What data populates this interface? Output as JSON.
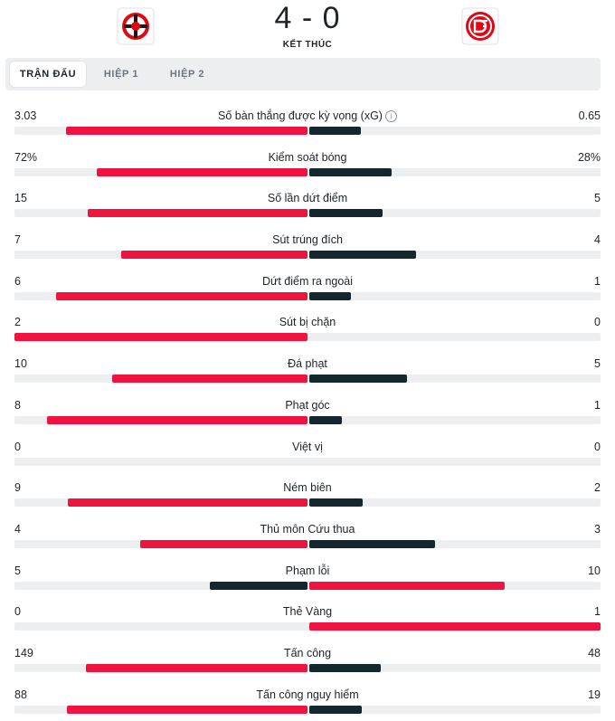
{
  "match": {
    "home_logo": "bayer-leverkusen-logo",
    "away_logo": "fortuna-dusseldorf-logo",
    "score": "4 - 0",
    "status": "KẾT THÚC"
  },
  "tabs": [
    {
      "label": "TRẬN ĐẤU",
      "active": true
    },
    {
      "label": "HIỆP 1",
      "active": false
    },
    {
      "label": "HIỆP 2",
      "active": false
    }
  ],
  "colors": {
    "home": "#f0123f",
    "away": "#14272e",
    "track": "#eceef0"
  },
  "stats": [
    {
      "label": "Số bàn thắng được kỳ vọng (xG)",
      "home": "3.03",
      "away": "0.65",
      "home_share": 0.823,
      "away_share": 0.177,
      "info": true
    },
    {
      "label": "Kiểm soát bóng",
      "home": "72%",
      "away": "28%",
      "home_share": 0.72,
      "away_share": 0.28
    },
    {
      "label": "Số lần dứt điểm",
      "home": "15",
      "away": "5",
      "home_share": 0.75,
      "away_share": 0.25
    },
    {
      "label": "Sút trúng đích",
      "home": "7",
      "away": "4",
      "home_share": 0.636,
      "away_share": 0.364
    },
    {
      "label": "Dứt điểm ra ngoài",
      "home": "6",
      "away": "1",
      "home_share": 0.857,
      "away_share": 0.143
    },
    {
      "label": "Sút bị chặn",
      "home": "2",
      "away": "0",
      "home_share": 1.0,
      "away_share": 0.0
    },
    {
      "label": "Đá phạt",
      "home": "10",
      "away": "5",
      "home_share": 0.667,
      "away_share": 0.333
    },
    {
      "label": "Phạt góc",
      "home": "8",
      "away": "1",
      "home_share": 0.889,
      "away_share": 0.111
    },
    {
      "label": "Việt vị",
      "home": "0",
      "away": "0",
      "home_share": 0.0,
      "away_share": 0.0
    },
    {
      "label": "Ném biên",
      "home": "9",
      "away": "2",
      "home_share": 0.818,
      "away_share": 0.182
    },
    {
      "label": "Thủ môn Cứu thua",
      "home": "4",
      "away": "3",
      "home_share": 0.571,
      "away_share": 0.429
    },
    {
      "label": "Phạm lỗi",
      "home": "5",
      "away": "10",
      "home_share": 0.333,
      "away_share": 0.667,
      "away_leads": true
    },
    {
      "label": "Thẻ Vàng",
      "home": "0",
      "away": "1",
      "home_share": 0.0,
      "away_share": 1.0,
      "away_leads": true
    },
    {
      "label": "Tấn công",
      "home": "149",
      "away": "48",
      "home_share": 0.756,
      "away_share": 0.244
    },
    {
      "label": "Tấn công nguy hiểm",
      "home": "88",
      "away": "19",
      "home_share": 0.822,
      "away_share": 0.178
    }
  ]
}
